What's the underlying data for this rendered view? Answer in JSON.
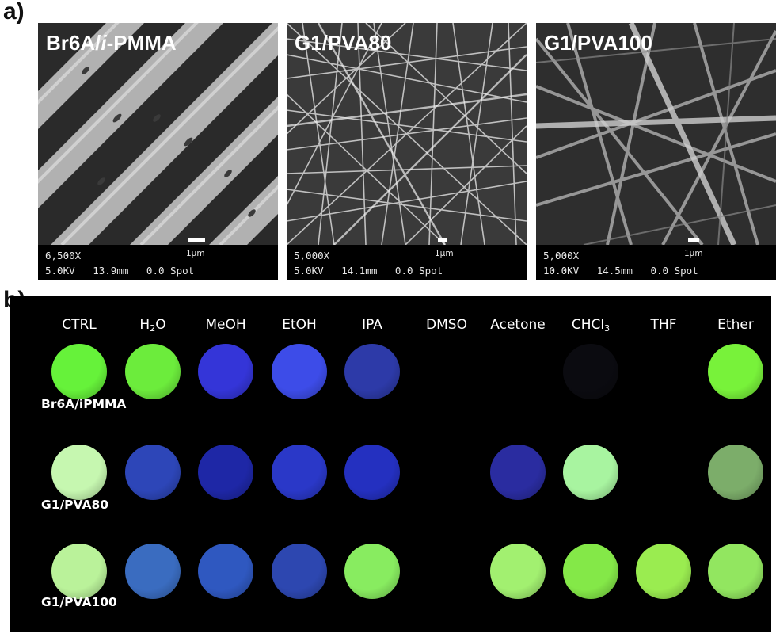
{
  "panels": {
    "a": {
      "letter": "a)",
      "images": [
        {
          "title_main": "Br6A/",
          "title_ital": "i",
          "title_rest": "-PMMA",
          "magnification": "6,500X",
          "scale": "1μm",
          "settings": "5.0KV   13.9mm   0.0 Spot"
        },
        {
          "title_main": "G1/PVA80",
          "title_ital": "",
          "title_rest": "",
          "magnification": "5,000X",
          "scale": "1μm",
          "settings": "5.0KV   14.1mm   0.0 Spot"
        },
        {
          "title_main": "G1/PVA100",
          "title_ital": "",
          "title_rest": "",
          "magnification": "5,000X",
          "scale": "1μm",
          "settings": "10.0KV   14.5mm   0.0 Spot"
        }
      ]
    },
    "b": {
      "letter": "b)",
      "columns": [
        {
          "text": "CTRL",
          "sub": "",
          "tail": ""
        },
        {
          "text": "H",
          "sub": "2",
          "tail": "O"
        },
        {
          "text": "MeOH",
          "sub": "",
          "tail": ""
        },
        {
          "text": "EtOH",
          "sub": "",
          "tail": ""
        },
        {
          "text": "IPA",
          "sub": "",
          "tail": ""
        },
        {
          "text": "DMSO",
          "sub": "",
          "tail": ""
        },
        {
          "text": "Acetone",
          "sub": "",
          "tail": ""
        },
        {
          "text": "CHCl",
          "sub": "3",
          "tail": ""
        },
        {
          "text": "THF",
          "sub": "",
          "tail": ""
        },
        {
          "text": "Ether",
          "sub": "",
          "tail": ""
        }
      ],
      "rows": [
        {
          "label": "Br6A/iPMMA",
          "colors": [
            "#66f23a",
            "#6cec3c",
            "#3435d8",
            "#3d4ce8",
            "#2d3aa8",
            null,
            null,
            "#0b0b10",
            null,
            "#78f23a"
          ]
        },
        {
          "label": "G1/PVA80",
          "colors": [
            "#c6f7b0",
            "#2d46b8",
            "#1e27a6",
            "#2a38c8",
            "#2430c0",
            null,
            "#2a2ca0",
            "#a8f4a0",
            null,
            "#7cad6a"
          ]
        },
        {
          "label": "G1/PVA100",
          "colors": [
            "#baf29a",
            "#3a6cc0",
            "#2f58c0",
            "#2d47b0",
            "#88ec60",
            null,
            "#a2f070",
            "#84e848",
            "#9aec50",
            "#92e660"
          ]
        }
      ]
    }
  }
}
